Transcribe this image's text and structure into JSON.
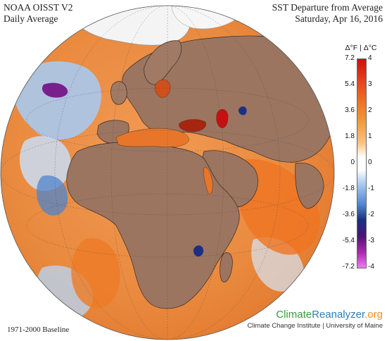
{
  "header": {
    "product_line1": "NOAA OISST V2",
    "product_line2": "Daily Average",
    "metric_line1": "SST Departure from Average",
    "date_line2": "Saturday, Apr 16, 2016"
  },
  "legend": {
    "title": "Δ°F | Δ°C",
    "ticks_f": [
      "7.2",
      "5.4",
      "3.6",
      "1.8",
      "0",
      "-1.8",
      "-3.6",
      "-5.4",
      "-7.2"
    ],
    "ticks_c": [
      "4",
      "3",
      "2",
      "1",
      "0",
      "-1",
      "-2",
      "-3",
      "-4"
    ],
    "colors": {
      "warm_max": "#d01010",
      "warm_mid": "#f07020",
      "neutral": "#ffffff",
      "cool_mid": "#4f84cc",
      "cool_min": "#f07af0"
    }
  },
  "footer": {
    "baseline": "1971-2000 Baseline",
    "brand_part1": "Climate",
    "brand_part2": "Reanalyzer",
    "brand_part3": ".org",
    "institution": "Climate Change Institute | University of Maine"
  },
  "map": {
    "projection": "orthographic",
    "view": "Europe / Africa / Middle East",
    "land_color": "#9b7560",
    "ocean_warm_color": "#e8823a",
    "ocean_cool_color": "#8fb6e6",
    "ice_color": "#f4f4f4"
  }
}
